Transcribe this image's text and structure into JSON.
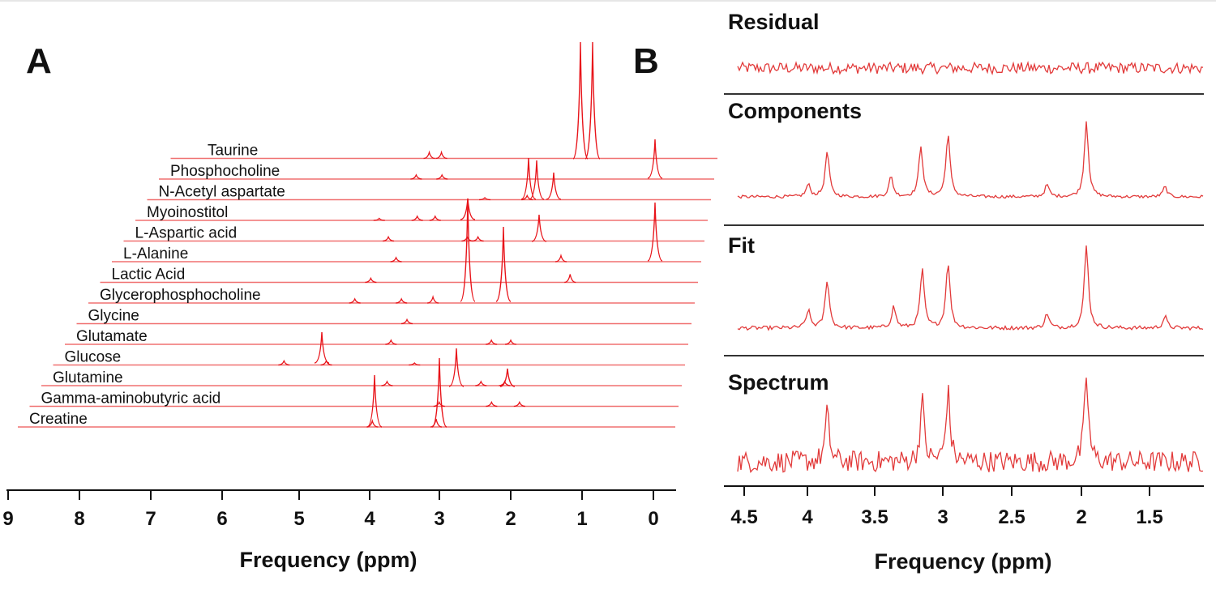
{
  "figure": {
    "line_color": "#e8141a",
    "trace_color": "#e23a3a",
    "text_color": "#111111"
  },
  "chart_data": [
    {
      "panel": "A",
      "type": "line",
      "xlabel": "Frequency (ppm)",
      "xlim": [
        9.0,
        -0.3
      ],
      "x_ticks": [
        "9",
        "8",
        "7",
        "6",
        "5",
        "4",
        "3",
        "2",
        "1",
        "0"
      ],
      "series": [
        {
          "name": "Taurine",
          "peaks": [
            {
              "ppm": 3.42,
              "height": 0.03
            },
            {
              "ppm": 3.25,
              "height": 0.03
            }
          ]
        },
        {
          "name": "Phosphocholine",
          "peaks": [
            {
              "ppm": 3.58,
              "height": 0.02
            },
            {
              "ppm": 3.22,
              "height": 0.02
            }
          ]
        },
        {
          "name": "N-Acetyl aspartate",
          "peaks": [
            {
              "ppm": 2.01,
              "height": 0.02
            },
            {
              "ppm": 2.6,
              "height": 0.01
            }
          ]
        },
        {
          "name": "Myoinostitol",
          "peaks": [
            {
              "ppm": 3.52,
              "height": 0.02
            },
            {
              "ppm": 3.27,
              "height": 0.02
            },
            {
              "ppm": 4.05,
              "height": 0.01
            }
          ]
        },
        {
          "name": "L-Aspartic acid",
          "peaks": [
            {
              "ppm": 3.9,
              "height": 0.02
            },
            {
              "ppm": 2.8,
              "height": 0.02
            },
            {
              "ppm": 2.65,
              "height": 0.02
            }
          ]
        },
        {
          "name": "L-Alanine",
          "peaks": [
            {
              "ppm": 3.77,
              "height": 0.02
            },
            {
              "ppm": 1.47,
              "height": 0.03
            }
          ]
        },
        {
          "name": "Lactic Acid",
          "peaks": [
            {
              "ppm": 4.1,
              "height": 0.02
            },
            {
              "ppm": 1.32,
              "height": 0.04
            }
          ]
        },
        {
          "name": "Glycerophosphocholine",
          "peaks": [
            {
              "ppm": 3.21,
              "height": 0.03
            },
            {
              "ppm": 3.65,
              "height": 0.02
            },
            {
              "ppm": 4.3,
              "height": 0.02
            }
          ]
        },
        {
          "name": "Glycine",
          "peaks": [
            {
              "ppm": 3.55,
              "height": 0.02
            }
          ]
        },
        {
          "name": "Glutamate",
          "peaks": [
            {
              "ppm": 3.75,
              "height": 0.02
            },
            {
              "ppm": 2.35,
              "height": 0.02
            },
            {
              "ppm": 2.08,
              "height": 0.02
            }
          ]
        },
        {
          "name": "Glucose",
          "peaks": [
            {
              "ppm": 5.22,
              "height": 0.02
            },
            {
              "ppm": 4.63,
              "height": 0.02
            },
            {
              "ppm": 3.4,
              "height": 0.01
            }
          ]
        },
        {
          "name": "Glutamine",
          "peaks": [
            {
              "ppm": 3.76,
              "height": 0.02
            },
            {
              "ppm": 2.45,
              "height": 0.02
            },
            {
              "ppm": 2.12,
              "height": 0.02
            }
          ]
        },
        {
          "name": "Gamma-aminobutyric acid",
          "peaks": [
            {
              "ppm": 3.01,
              "height": 0.02
            },
            {
              "ppm": 2.28,
              "height": 0.02
            },
            {
              "ppm": 1.89,
              "height": 0.02
            }
          ]
        },
        {
          "name": "Creatine",
          "peaks": [
            {
              "ppm": 3.92,
              "height": 0.03
            },
            {
              "ppm": 3.03,
              "height": 0.04
            }
          ]
        }
      ]
    },
    {
      "panel": "B",
      "type": "line",
      "xlabel": "Frequency (ppm)",
      "xlim": [
        4.6,
        1.1
      ],
      "x_ticks": [
        "4.5",
        "4",
        "3.5",
        "3",
        "2.5",
        "2",
        "1.5"
      ],
      "series": [
        {
          "name": "Residual",
          "peaks": []
        },
        {
          "name": "Components",
          "peaks": [
            {
              "ppm": 4.06,
              "height": 0.12
            },
            {
              "ppm": 3.92,
              "height": 0.45
            },
            {
              "ppm": 3.45,
              "height": 0.2
            },
            {
              "ppm": 3.23,
              "height": 0.5
            },
            {
              "ppm": 3.03,
              "height": 0.62
            },
            {
              "ppm": 2.3,
              "height": 0.12
            },
            {
              "ppm": 2.01,
              "height": 0.75
            },
            {
              "ppm": 1.43,
              "height": 0.1
            }
          ]
        },
        {
          "name": "Fit",
          "peaks": [
            {
              "ppm": 4.06,
              "height": 0.18
            },
            {
              "ppm": 3.92,
              "height": 0.5
            },
            {
              "ppm": 3.43,
              "height": 0.22
            },
            {
              "ppm": 3.22,
              "height": 0.6
            },
            {
              "ppm": 3.03,
              "height": 0.68
            },
            {
              "ppm": 2.3,
              "height": 0.15
            },
            {
              "ppm": 2.01,
              "height": 0.85
            },
            {
              "ppm": 1.43,
              "height": 0.12
            }
          ]
        },
        {
          "name": "Spectrum",
          "peaks": [
            {
              "ppm": 3.92,
              "height": 0.5
            },
            {
              "ppm": 3.22,
              "height": 0.62
            },
            {
              "ppm": 3.03,
              "height": 0.72
            },
            {
              "ppm": 2.01,
              "height": 0.88
            }
          ]
        }
      ]
    }
  ]
}
